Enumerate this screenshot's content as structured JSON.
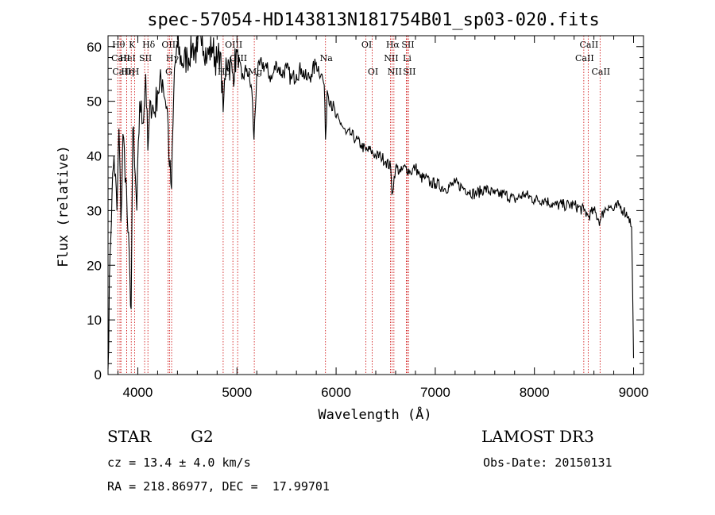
{
  "chart_data": {
    "type": "line",
    "title": "spec-57054-HD143813N181754B01_sp03-020.fits",
    "xlabel": "Wavelength (Å)",
    "ylabel": "Flux (relative)",
    "xlim": [
      3700,
      9100
    ],
    "ylim": [
      0,
      62
    ],
    "xticks": [
      4000,
      5000,
      6000,
      7000,
      8000,
      9000
    ],
    "yticks": [
      0,
      10,
      20,
      30,
      40,
      50,
      60
    ],
    "series": [
      {
        "name": "spectrum",
        "x": [
          3700,
          3720,
          3740,
          3760,
          3790,
          3810,
          3830,
          3850,
          3880,
          3900,
          3920,
          3933,
          3950,
          3968,
          3990,
          4020,
          4050,
          4080,
          4101,
          4130,
          4170,
          4200,
          4250,
          4300,
          4320,
          4340,
          4370,
          4400,
          4450,
          4500,
          4550,
          4600,
          4650,
          4700,
          4750,
          4800,
          4830,
          4861,
          4890,
          4920,
          4960,
          5000,
          5050,
          5100,
          5150,
          5172,
          5200,
          5250,
          5300,
          5350,
          5400,
          5450,
          5500,
          5550,
          5600,
          5650,
          5700,
          5750,
          5800,
          5850,
          5880,
          5893,
          5910,
          5950,
          6000,
          6050,
          6100,
          6150,
          6200,
          6250,
          6300,
          6350,
          6400,
          6450,
          6500,
          6550,
          6563,
          6600,
          6650,
          6700,
          6750,
          6800,
          6850,
          6900,
          6950,
          7000,
          7100,
          7200,
          7300,
          7400,
          7500,
          7600,
          7700,
          7800,
          7900,
          8000,
          8100,
          8200,
          8300,
          8400,
          8500,
          8542,
          8600,
          8662,
          8700,
          8750,
          8800,
          8850,
          8900,
          8950,
          8980,
          9000
        ],
        "values": [
          1,
          22,
          33,
          40,
          30,
          45,
          28,
          44,
          36,
          26,
          18,
          12,
          45,
          38,
          30,
          50,
          46,
          55,
          41,
          50,
          48,
          52,
          54,
          48,
          38,
          34,
          56,
          60,
          57,
          58,
          60,
          59,
          62,
          58,
          60,
          57,
          59,
          48,
          58,
          57,
          55,
          59,
          54,
          56,
          52,
          43,
          55,
          57,
          56,
          54,
          57,
          55,
          56,
          54,
          55,
          56,
          54,
          55,
          57,
          55,
          53,
          43,
          52,
          50,
          47,
          46,
          44,
          44,
          43,
          42,
          41,
          41,
          40,
          40,
          39,
          38,
          33,
          38,
          37,
          38,
          37,
          38,
          36,
          36,
          35,
          35,
          34,
          35,
          34,
          33,
          34,
          33,
          33,
          32,
          33,
          32,
          32,
          31,
          31,
          31,
          30,
          29,
          30,
          28,
          30,
          31,
          30,
          31,
          30,
          29,
          27,
          3
        ]
      }
    ],
    "spectral_lines": [
      {
        "label": "Hθ",
        "wavelength": 3798,
        "row": 0
      },
      {
        "label": "CaII",
        "wavelength": 3820,
        "row": 1
      },
      {
        "label": "CaII",
        "wavelength": 3830,
        "row": 2
      },
      {
        "label": "HeI",
        "wavelength": 3889,
        "row": 1
      },
      {
        "label": "Hη",
        "wavelength": 3889,
        "row": 2
      },
      {
        "label": "K",
        "wavelength": 3934,
        "row": 0
      },
      {
        "label": "H",
        "wavelength": 3969,
        "row": 2
      },
      {
        "label": "SII",
        "wavelength": 4069,
        "row": 1
      },
      {
        "label": "Hδ",
        "wavelength": 4102,
        "row": 0
      },
      {
        "label": "OIII",
        "wavelength": 4320,
        "row": 0
      },
      {
        "label": "Hγ",
        "wavelength": 4341,
        "row": 1
      },
      {
        "label": "G",
        "wavelength": 4304,
        "row": 2
      },
      {
        "label": "OIII",
        "wavelength": 4959,
        "row": 0
      },
      {
        "label": "OIII",
        "wavelength": 5007,
        "row": 1
      },
      {
        "label": "Hβ",
        "wavelength": 4861,
        "row": 2
      },
      {
        "label": "Mg",
        "wavelength": 5175,
        "row": 2
      },
      {
        "label": "Na",
        "wavelength": 5893,
        "row": 1
      },
      {
        "label": "OI",
        "wavelength": 6300,
        "row": 0
      },
      {
        "label": "OI",
        "wavelength": 6364,
        "row": 2
      },
      {
        "label": "Hα",
        "wavelength": 6563,
        "row": 0
      },
      {
        "label": "NII",
        "wavelength": 6548,
        "row": 1
      },
      {
        "label": "NII",
        "wavelength": 6583,
        "row": 2
      },
      {
        "label": "SII",
        "wavelength": 6716,
        "row": 0
      },
      {
        "label": "Li",
        "wavelength": 6708,
        "row": 1
      },
      {
        "label": "SII",
        "wavelength": 6731,
        "row": 2
      },
      {
        "label": "CaII",
        "wavelength": 8542,
        "row": 0
      },
      {
        "label": "CaII",
        "wavelength": 8498,
        "row": 1
      },
      {
        "label": "CaII",
        "wavelength": 8662,
        "row": 2
      }
    ]
  },
  "info": {
    "object_class": "STAR",
    "subclass": "G2",
    "survey": "LAMOST DR3",
    "cz": "cz = 13.4 ± 4.0 km/s",
    "obs_date": "Obs-Date: 20150131",
    "coords": "RA = 218.86977, DEC =  17.99701"
  },
  "colors": {
    "spectrum": "#000000",
    "line_marker": "#cc0000",
    "axis": "#000000"
  }
}
